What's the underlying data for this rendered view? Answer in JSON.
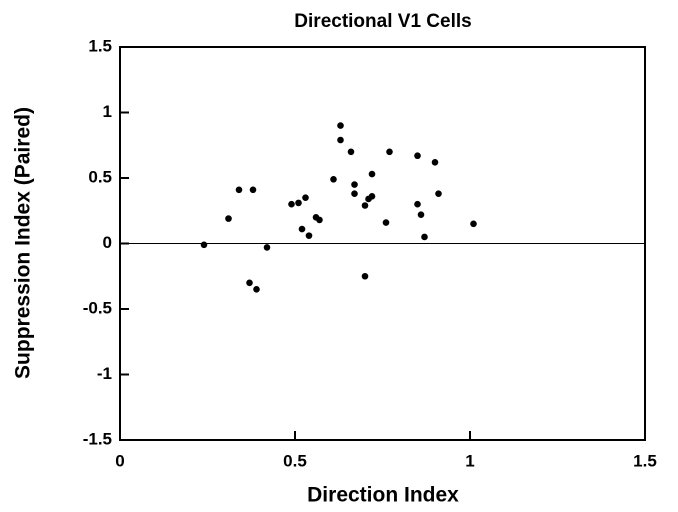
{
  "chart_data": {
    "type": "scatter",
    "title": "Directional  V1  Cells",
    "x_label": "Direction  Index",
    "y_label": "Suppression  Index  (Paired)",
    "x": [
      0.24,
      0.31,
      0.34,
      0.38,
      0.37,
      0.39,
      0.42,
      0.49,
      0.51,
      0.52,
      0.53,
      0.54,
      0.56,
      0.57,
      0.61,
      0.63,
      0.63,
      0.66,
      0.67,
      0.67,
      0.7,
      0.71,
      0.72,
      0.72,
      0.7,
      0.76,
      0.77,
      0.85,
      0.85,
      0.86,
      0.87,
      0.9,
      0.91,
      1.01
    ],
    "y": [
      -0.01,
      0.19,
      0.41,
      0.41,
      -0.3,
      -0.35,
      -0.03,
      0.3,
      0.31,
      0.11,
      0.35,
      0.06,
      0.2,
      0.18,
      0.49,
      0.9,
      0.79,
      0.7,
      0.45,
      0.38,
      0.29,
      0.34,
      0.36,
      0.53,
      -0.25,
      0.16,
      0.7,
      0.67,
      0.3,
      0.22,
      0.05,
      0.62,
      0.38,
      0.15
    ],
    "color": "#000000",
    "xlim": [
      0,
      1.5
    ],
    "xticks": [
      0,
      0.5,
      1,
      1.5
    ],
    "ylim": [
      -1.5,
      1.5
    ],
    "yticks": [
      -1.5,
      -1,
      -0.5,
      0,
      0.5,
      1,
      1.5
    ],
    "reference_line": 0
  }
}
